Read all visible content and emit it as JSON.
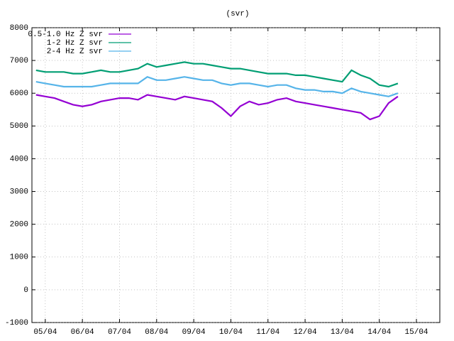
{
  "chart_data": {
    "type": "line",
    "title": "(svr)",
    "x": [
      4.75,
      5.0,
      5.25,
      5.5,
      5.75,
      6.0,
      6.25,
      6.5,
      6.75,
      7.0,
      7.25,
      7.5,
      7.75,
      8.0,
      8.25,
      8.5,
      8.75,
      9.0,
      9.25,
      9.5,
      9.75,
      10.0,
      10.25,
      10.5,
      10.75,
      11.0,
      11.25,
      11.5,
      11.75,
      12.0,
      12.25,
      12.5,
      12.75,
      13.0,
      13.25,
      13.5,
      13.75,
      14.0,
      14.25,
      14.5
    ],
    "series": [
      {
        "name": "0.5-1.0 Hz Z svr",
        "color": "#9400d3",
        "values": [
          5950,
          5900,
          5850,
          5750,
          5650,
          5600,
          5650,
          5750,
          5800,
          5850,
          5850,
          5800,
          5950,
          5900,
          5850,
          5800,
          5900,
          5850,
          5800,
          5750,
          5550,
          5300,
          5600,
          5750,
          5650,
          5700,
          5800,
          5850,
          5750,
          5700,
          5650,
          5600,
          5550,
          5500,
          5450,
          5400,
          5200,
          5300,
          5700,
          5900
        ]
      },
      {
        "name": "1-2 Hz Z svr",
        "color": "#009e73",
        "values": [
          6700,
          6650,
          6650,
          6650,
          6600,
          6600,
          6650,
          6700,
          6650,
          6650,
          6700,
          6750,
          6900,
          6800,
          6850,
          6900,
          6950,
          6900,
          6900,
          6850,
          6800,
          6750,
          6750,
          6700,
          6650,
          6600,
          6600,
          6600,
          6550,
          6550,
          6500,
          6450,
          6400,
          6350,
          6700,
          6550,
          6450,
          6250,
          6200,
          6300
        ]
      },
      {
        "name": "2-4 Hz Z svr",
        "color": "#56b4e9",
        "values": [
          6350,
          6300,
          6250,
          6200,
          6200,
          6200,
          6200,
          6250,
          6300,
          6300,
          6300,
          6300,
          6500,
          6400,
          6400,
          6450,
          6500,
          6450,
          6400,
          6400,
          6300,
          6250,
          6300,
          6300,
          6250,
          6200,
          6250,
          6250,
          6150,
          6100,
          6100,
          6050,
          6050,
          6000,
          6150,
          6050,
          6000,
          5950,
          5900,
          6000
        ]
      }
    ],
    "xlim": [
      4.64,
      15.63
    ],
    "xticks": [
      {
        "value": 5,
        "label": "05/04"
      },
      {
        "value": 6,
        "label": "06/04"
      },
      {
        "value": 7,
        "label": "07/04"
      },
      {
        "value": 8,
        "label": "08/04"
      },
      {
        "value": 9,
        "label": "09/04"
      },
      {
        "value": 10,
        "label": "10/04"
      },
      {
        "value": 11,
        "label": "11/04"
      },
      {
        "value": 12,
        "label": "12/04"
      },
      {
        "value": 13,
        "label": "13/04"
      },
      {
        "value": 14,
        "label": "14/04"
      },
      {
        "value": 15,
        "label": "15/04"
      }
    ],
    "ylim": [
      -1000,
      8000
    ],
    "yticks": [
      -1000,
      0,
      1000,
      2000,
      3000,
      4000,
      5000,
      6000,
      7000,
      8000
    ],
    "grid": true,
    "legend": "top-left"
  }
}
